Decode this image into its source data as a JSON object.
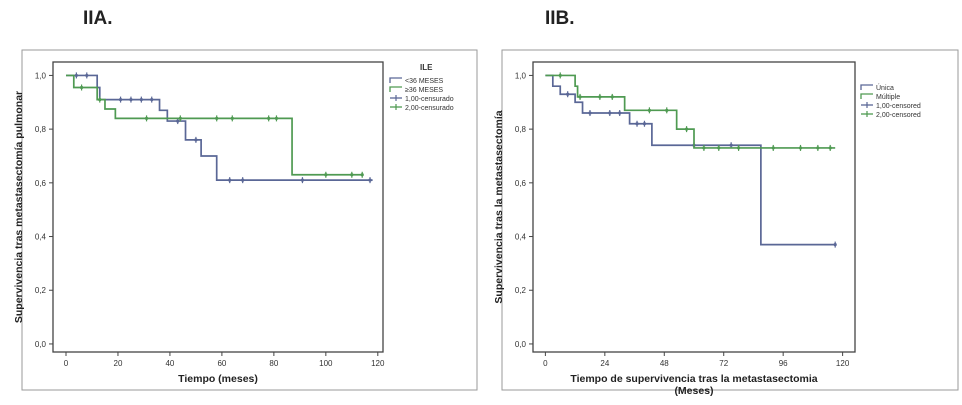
{
  "panels": [
    {
      "label": "IIA."
    },
    {
      "label": "IIB."
    }
  ],
  "chart_data": [
    {
      "type": "line",
      "step": true,
      "xlabel": "Tiempo (meses)",
      "ylabel": "Supervivencia tras metastasectomía pulmonar",
      "xlim": [
        -5,
        122
      ],
      "ylim": [
        -0.03,
        1.05
      ],
      "xticks": [
        "0",
        "20",
        "40",
        "60",
        "80",
        "100",
        "120"
      ],
      "yticks": [
        "0,0",
        "0,2",
        "0,4",
        "0,6",
        "0,8",
        "1,0"
      ],
      "grid": false,
      "legend_position": "right",
      "legend": {
        "title": "ILE",
        "entries": [
          "<36 MESES",
          "≥36 MESES",
          "1,00-censurado",
          "2,00-censurado"
        ]
      },
      "series": [
        {
          "name": "<36 MESES",
          "color": "#5a6796",
          "steps": [
            [
              0,
              1.0
            ],
            [
              12,
              0.955
            ],
            [
              13,
              0.91
            ],
            [
              36,
              0.87
            ],
            [
              39,
              0.83
            ],
            [
              46,
              0.76
            ],
            [
              52,
              0.7
            ],
            [
              58,
              0.61
            ],
            [
              118,
              0.61
            ]
          ],
          "censored": [
            [
              4,
              1.0
            ],
            [
              8,
              1.0
            ],
            [
              21,
              0.91
            ],
            [
              25,
              0.91
            ],
            [
              29,
              0.91
            ],
            [
              33,
              0.91
            ],
            [
              43,
              0.83
            ],
            [
              50,
              0.76
            ],
            [
              63,
              0.61
            ],
            [
              68,
              0.61
            ],
            [
              91,
              0.61
            ],
            [
              117,
              0.61
            ]
          ]
        },
        {
          "name": "≥36 MESES",
          "color": "#4f9a52",
          "steps": [
            [
              0,
              1.0
            ],
            [
              3,
              0.955
            ],
            [
              12,
              0.91
            ],
            [
              15,
              0.875
            ],
            [
              19,
              0.84
            ],
            [
              86,
              0.84
            ],
            [
              87,
              0.63
            ],
            [
              114,
              0.63
            ]
          ],
          "censored": [
            [
              6,
              0.955
            ],
            [
              13,
              0.91
            ],
            [
              31,
              0.84
            ],
            [
              44,
              0.84
            ],
            [
              58,
              0.84
            ],
            [
              64,
              0.84
            ],
            [
              78,
              0.84
            ],
            [
              81,
              0.84
            ],
            [
              100,
              0.63
            ],
            [
              110,
              0.63
            ],
            [
              114,
              0.63
            ]
          ]
        }
      ]
    },
    {
      "type": "line",
      "step": true,
      "xlabel": "Tiempo de supervivencia tras la metastasectomia (Meses)",
      "ylabel": "Supervivencia tras la metastasectomía",
      "xlim": [
        -5,
        125
      ],
      "ylim": [
        -0.03,
        1.05
      ],
      "xticks": [
        "0",
        "24",
        "48",
        "72",
        "96",
        "120"
      ],
      "yticks": [
        "0,0",
        "0,2",
        "0,4",
        "0,6",
        "0,8",
        "1,0"
      ],
      "grid": false,
      "legend_position": "right",
      "legend": {
        "title": "",
        "entries": [
          "Única",
          "Múltiple",
          "1,00-censored",
          "2,00-censored"
        ]
      },
      "series": [
        {
          "name": "Única",
          "color": "#5a6796",
          "steps": [
            [
              0,
              1.0
            ],
            [
              3,
              0.96
            ],
            [
              6,
              0.93
            ],
            [
              12,
              0.9
            ],
            [
              15,
              0.86
            ],
            [
              34,
              0.82
            ],
            [
              43,
              0.74
            ],
            [
              86,
              0.74
            ],
            [
              87,
              0.37
            ],
            [
              117,
              0.37
            ]
          ],
          "censored": [
            [
              9,
              0.93
            ],
            [
              18,
              0.86
            ],
            [
              26,
              0.86
            ],
            [
              30,
              0.86
            ],
            [
              37,
              0.82
            ],
            [
              40,
              0.82
            ],
            [
              60,
              0.74
            ],
            [
              75,
              0.74
            ],
            [
              117,
              0.37
            ]
          ]
        },
        {
          "name": "Múltiple",
          "color": "#4f9a52",
          "steps": [
            [
              0,
              1.0
            ],
            [
              12,
              0.96
            ],
            [
              13,
              0.92
            ],
            [
              32,
              0.87
            ],
            [
              53,
              0.8
            ],
            [
              60,
              0.73
            ],
            [
              117,
              0.73
            ]
          ],
          "censored": [
            [
              6,
              1.0
            ],
            [
              14,
              0.92
            ],
            [
              22,
              0.92
            ],
            [
              27,
              0.92
            ],
            [
              42,
              0.87
            ],
            [
              49,
              0.87
            ],
            [
              57,
              0.8
            ],
            [
              64,
              0.73
            ],
            [
              70,
              0.73
            ],
            [
              78,
              0.73
            ],
            [
              92,
              0.73
            ],
            [
              103,
              0.73
            ],
            [
              110,
              0.73
            ],
            [
              115,
              0.73
            ]
          ]
        }
      ]
    }
  ]
}
